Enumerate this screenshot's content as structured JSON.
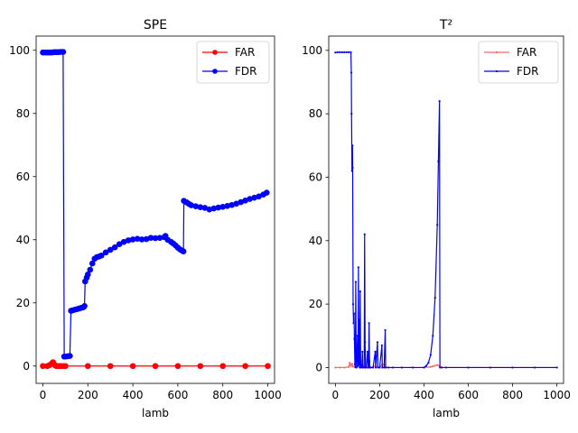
{
  "chart_data": [
    {
      "type": "line",
      "title": "SPE",
      "xlabel": "lamb",
      "ylabel": "",
      "xlim": [
        -30,
        1030
      ],
      "ylim": [
        -5.5,
        104.5
      ],
      "xticks": [
        0,
        200,
        400,
        600,
        800,
        1000
      ],
      "xtick_labels": [
        "0",
        "200",
        "400",
        "600",
        "800",
        "1000"
      ],
      "yticks": [
        0,
        20,
        40,
        60,
        80,
        100
      ],
      "ytick_labels": [
        "0",
        "20",
        "40",
        "60",
        "80",
        "100"
      ],
      "grid": false,
      "legend_position": "upper right",
      "series": [
        {
          "name": "FAR",
          "color": "#ff0000",
          "marker": "circle",
          "points": [
            [
              0,
              0
            ],
            [
              20,
              0
            ],
            [
              30,
              0.3
            ],
            [
              40,
              0.8
            ],
            [
              45,
              1.2
            ],
            [
              50,
              0.6
            ],
            [
              55,
              0.2
            ],
            [
              60,
              0
            ],
            [
              70,
              0
            ],
            [
              80,
              0
            ],
            [
              90,
              0
            ],
            [
              100,
              0
            ],
            [
              200,
              0
            ],
            [
              300,
              0
            ],
            [
              400,
              0
            ],
            [
              500,
              0
            ],
            [
              600,
              0
            ],
            [
              700,
              0
            ],
            [
              800,
              0
            ],
            [
              900,
              0
            ],
            [
              1000,
              0
            ]
          ]
        },
        {
          "name": "FDR",
          "color": "#0000ff",
          "marker": "circle",
          "points": [
            [
              0,
              99.3
            ],
            [
              10,
              99.3
            ],
            [
              20,
              99.3
            ],
            [
              30,
              99.3
            ],
            [
              40,
              99.3
            ],
            [
              50,
              99.4
            ],
            [
              60,
              99.4
            ],
            [
              70,
              99.4
            ],
            [
              80,
              99.5
            ],
            [
              90,
              99.5
            ],
            [
              95,
              3.0
            ],
            [
              100,
              3.0
            ],
            [
              110,
              3.1
            ],
            [
              120,
              3.2
            ],
            [
              125,
              17.5
            ],
            [
              130,
              17.6
            ],
            [
              140,
              17.8
            ],
            [
              150,
              18.0
            ],
            [
              160,
              18.2
            ],
            [
              170,
              18.4
            ],
            [
              180,
              18.6
            ],
            [
              185,
              19.0
            ],
            [
              188,
              26.8
            ],
            [
              195,
              28.0
            ],
            [
              200,
              29.0
            ],
            [
              210,
              30.5
            ],
            [
              220,
              32.5
            ],
            [
              230,
              34.0
            ],
            [
              240,
              34.5
            ],
            [
              250,
              34.7
            ],
            [
              260,
              35.0
            ],
            [
              280,
              36.0
            ],
            [
              300,
              36.8
            ],
            [
              320,
              37.6
            ],
            [
              340,
              38.6
            ],
            [
              360,
              39.3
            ],
            [
              380,
              39.8
            ],
            [
              400,
              40.1
            ],
            [
              420,
              40.3
            ],
            [
              440,
              40.1
            ],
            [
              460,
              40.2
            ],
            [
              480,
              40.6
            ],
            [
              500,
              40.5
            ],
            [
              520,
              40.6
            ],
            [
              540,
              40.8
            ],
            [
              545,
              41.2
            ],
            [
              555,
              40.0
            ],
            [
              570,
              39.3
            ],
            [
              580,
              38.8
            ],
            [
              590,
              38.2
            ],
            [
              600,
              37.5
            ],
            [
              610,
              36.9
            ],
            [
              620,
              36.5
            ],
            [
              625,
              36.3
            ],
            [
              627,
              52.3
            ],
            [
              640,
              51.8
            ],
            [
              650,
              51.3
            ],
            [
              660,
              50.9
            ],
            [
              680,
              50.6
            ],
            [
              700,
              50.3
            ],
            [
              720,
              50.1
            ],
            [
              740,
              49.6
            ],
            [
              760,
              49.9
            ],
            [
              780,
              50.2
            ],
            [
              800,
              50.4
            ],
            [
              820,
              50.7
            ],
            [
              840,
              51.0
            ],
            [
              860,
              51.4
            ],
            [
              880,
              51.9
            ],
            [
              900,
              52.4
            ],
            [
              920,
              52.9
            ],
            [
              940,
              53.3
            ],
            [
              960,
              53.7
            ],
            [
              980,
              54.3
            ],
            [
              995,
              54.9
            ]
          ]
        }
      ]
    },
    {
      "type": "line",
      "title": "T²",
      "xlabel": "lamb",
      "ylabel": "",
      "xlim": [
        -30,
        1030
      ],
      "ylim": [
        -5,
        104.5
      ],
      "xticks": [
        0,
        200,
        400,
        600,
        800,
        1000
      ],
      "xtick_labels": [
        "0",
        "200",
        "400",
        "600",
        "800",
        "1000"
      ],
      "yticks": [
        0,
        20,
        40,
        60,
        80,
        100
      ],
      "ytick_labels": [
        "0",
        "20",
        "40",
        "60",
        "80",
        "100"
      ],
      "grid": false,
      "legend_position": "upper right",
      "series": [
        {
          "name": "FAR",
          "color": "#ff6666",
          "marker": "small",
          "points": [
            [
              0,
              0
            ],
            [
              20,
              0
            ],
            [
              40,
              0
            ],
            [
              60,
              0.2
            ],
            [
              65,
              1.5
            ],
            [
              70,
              0.5
            ],
            [
              75,
              1.2
            ],
            [
              80,
              0.3
            ],
            [
              90,
              0
            ],
            [
              100,
              0.5
            ],
            [
              110,
              0.2
            ],
            [
              120,
              0
            ],
            [
              130,
              0.3
            ],
            [
              140,
              0
            ],
            [
              160,
              0
            ],
            [
              180,
              0.5
            ],
            [
              200,
              0
            ],
            [
              210,
              0.8
            ],
            [
              220,
              1.0
            ],
            [
              230,
              0
            ],
            [
              260,
              0
            ],
            [
              300,
              0
            ],
            [
              350,
              0
            ],
            [
              400,
              0
            ],
            [
              430,
              0.2
            ],
            [
              440,
              0.4
            ],
            [
              450,
              0.6
            ],
            [
              460,
              0.8
            ],
            [
              470,
              0.5
            ],
            [
              480,
              0
            ],
            [
              500,
              0
            ],
            [
              600,
              0
            ],
            [
              700,
              0
            ],
            [
              800,
              0
            ],
            [
              900,
              0
            ],
            [
              1000,
              0
            ]
          ]
        },
        {
          "name": "FDR",
          "color": "#0000ff",
          "marker": "small",
          "points": [
            [
              0,
              99.3
            ],
            [
              10,
              99.4
            ],
            [
              20,
              99.4
            ],
            [
              30,
              99.4
            ],
            [
              40,
              99.4
            ],
            [
              50,
              99.4
            ],
            [
              60,
              99.4
            ],
            [
              70,
              99.4
            ],
            [
              72,
              93.0
            ],
            [
              73,
              80.0
            ],
            [
              75,
              62.0
            ],
            [
              76,
              66.0
            ],
            [
              77,
              70.0
            ],
            [
              78,
              63.0
            ],
            [
              80,
              20.0
            ],
            [
              82,
              14.0
            ],
            [
              84,
              17.0
            ],
            [
              86,
              9.0
            ],
            [
              88,
              1.0
            ],
            [
              90,
              0.2
            ],
            [
              92,
              27.0
            ],
            [
              94,
              3.0
            ],
            [
              96,
              0
            ],
            [
              98,
              5.0
            ],
            [
              100,
              10.0
            ],
            [
              102,
              0.5
            ],
            [
              104,
              31.6
            ],
            [
              106,
              1.0
            ],
            [
              108,
              15.0
            ],
            [
              110,
              0
            ],
            [
              112,
              24.0
            ],
            [
              114,
              2.0
            ],
            [
              116,
              0
            ],
            [
              120,
              0.5
            ],
            [
              122,
              5.0
            ],
            [
              124,
              0
            ],
            [
              130,
              0
            ],
            [
              132,
              42.0
            ],
            [
              134,
              8.0
            ],
            [
              136,
              0
            ],
            [
              140,
              0
            ],
            [
              145,
              5.0
            ],
            [
              148,
              0
            ],
            [
              150,
              0
            ],
            [
              152,
              14.0
            ],
            [
              154,
              2.0
            ],
            [
              156,
              0
            ],
            [
              160,
              0
            ],
            [
              170,
              0
            ],
            [
              180,
              5.0
            ],
            [
              182,
              0
            ],
            [
              190,
              8.0
            ],
            [
              192,
              0
            ],
            [
              200,
              0
            ],
            [
              210,
              7.0
            ],
            [
              212,
              0
            ],
            [
              220,
              0
            ],
            [
              225,
              11.8
            ],
            [
              227,
              0
            ],
            [
              240,
              0
            ],
            [
              260,
              0
            ],
            [
              300,
              0
            ],
            [
              350,
              0
            ],
            [
              400,
              0
            ],
            [
              410,
              0.5
            ],
            [
              420,
              1.5
            ],
            [
              430,
              4.0
            ],
            [
              440,
              10.0
            ],
            [
              450,
              22.0
            ],
            [
              460,
              45.0
            ],
            [
              465,
              65.0
            ],
            [
              470,
              84.0
            ],
            [
              472,
              0
            ],
            [
              480,
              0
            ],
            [
              500,
              0
            ],
            [
              600,
              0
            ],
            [
              700,
              0
            ],
            [
              800,
              0
            ],
            [
              900,
              0
            ],
            [
              1000,
              0
            ]
          ]
        }
      ]
    }
  ]
}
